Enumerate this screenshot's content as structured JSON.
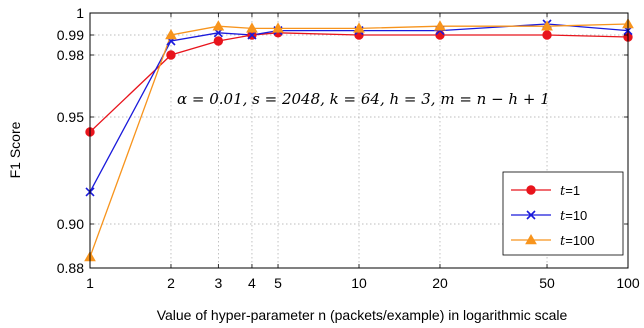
{
  "chart_data": {
    "type": "line",
    "xlabel": "Value of hyper-parameter n (packets/example) in logarithmic scale",
    "ylabel": "F1 Score",
    "x_scale": "log",
    "y_scale": "nonlinear",
    "xlim": [
      1,
      100
    ],
    "ylim": [
      0.88,
      1.0
    ],
    "x_ticks": [
      1,
      2,
      3,
      4,
      5,
      10,
      20,
      50,
      100
    ],
    "x_tick_labels": [
      "1",
      "2",
      "3",
      "4",
      "5",
      "10",
      "20",
      "50",
      "100"
    ],
    "y_ticks": [
      0.88,
      0.9,
      0.95,
      0.98,
      0.99,
      1.0
    ],
    "y_tick_labels": [
      "0.88",
      "0.90",
      "0.95",
      "0.98",
      "0.99",
      "1"
    ],
    "grid": true,
    "legend_position": "bottom-right",
    "annotation": "α = 0.01, s = 2048, k = 64, h = 3, m = n − h + 1",
    "x": [
      1,
      2,
      3,
      4,
      5,
      10,
      20,
      50,
      100
    ],
    "series": [
      {
        "name": "t=1",
        "label_var": "t",
        "label_value": "=1",
        "color": "#e8141c",
        "marker": "circle",
        "values": [
          0.943,
          0.98,
          0.987,
          0.99,
          0.991,
          0.99,
          0.99,
          0.99,
          0.989
        ]
      },
      {
        "name": "t=10",
        "label_var": "t",
        "label_value": "=10",
        "color": "#1a1adb",
        "marker": "x",
        "values": [
          0.915,
          0.987,
          0.991,
          0.99,
          0.992,
          0.992,
          0.992,
          0.995,
          0.992
        ]
      },
      {
        "name": "t=100",
        "label_var": "t",
        "label_value": "=100",
        "color": "#f7941d",
        "marker": "triangle",
        "values": [
          0.885,
          0.99,
          0.994,
          0.993,
          0.993,
          0.993,
          0.994,
          0.994,
          0.995
        ]
      }
    ]
  }
}
